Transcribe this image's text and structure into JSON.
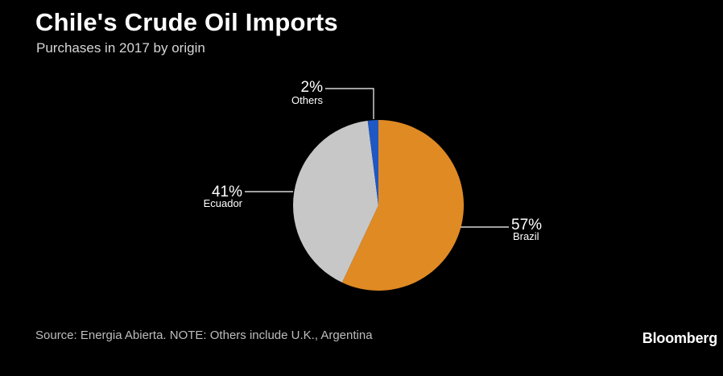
{
  "chart_data": {
    "type": "pie",
    "title": "Chile's Crude Oil Imports",
    "subtitle": "Purchases in 2017 by origin",
    "slices": [
      {
        "label": "Brazil",
        "value": 57,
        "value_label": "57%",
        "color": "#e08a24"
      },
      {
        "label": "Ecuador",
        "value": 41,
        "value_label": "41%",
        "color": "#c7c7c7"
      },
      {
        "label": "Others",
        "value": 2,
        "value_label": "2%",
        "color": "#1f57c3"
      }
    ],
    "start": "12 o'clock",
    "direction": "clockwise"
  },
  "footer": {
    "source": "Source: Energia Abierta. NOTE: Others include U.K., Argentina",
    "brand": "Bloomberg"
  }
}
